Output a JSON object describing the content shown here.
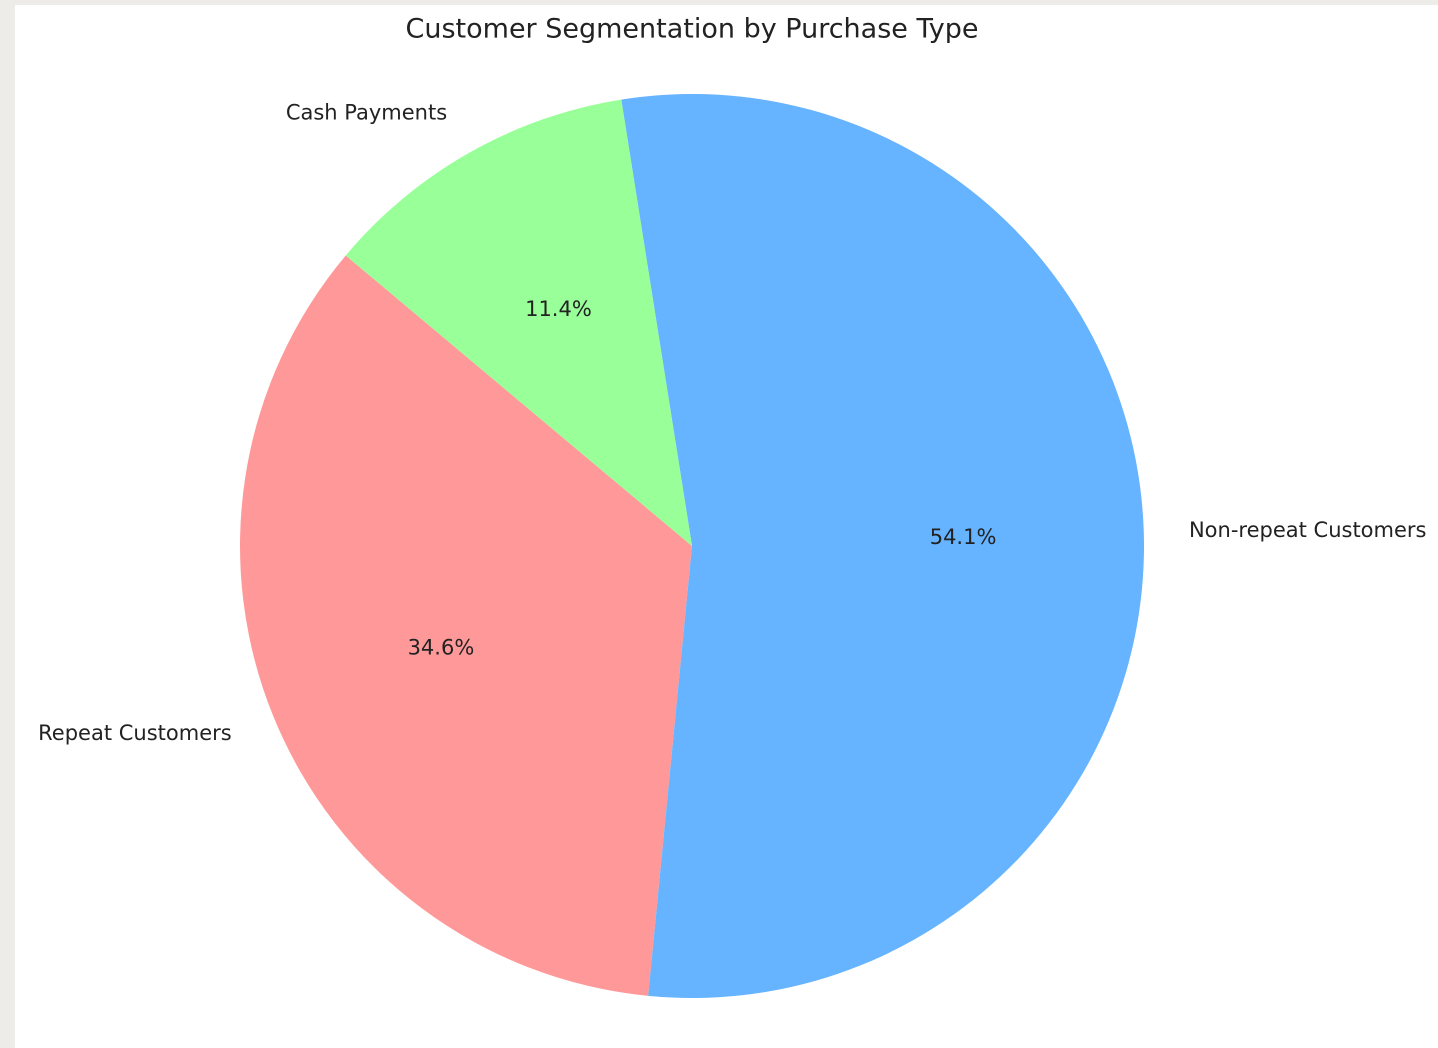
{
  "chart_data": {
    "type": "pie",
    "title": "Customer Segmentation by Purchase Type",
    "categories": [
      "Repeat Customers",
      "Non-repeat Customers",
      "Cash Payments"
    ],
    "values": [
      34.6,
      54.1,
      11.4
    ],
    "value_labels": [
      "34.6%",
      "54.1%",
      "11.4%"
    ],
    "colors": [
      "#ff9999",
      "#66b3ff",
      "#99ff99"
    ]
  }
}
